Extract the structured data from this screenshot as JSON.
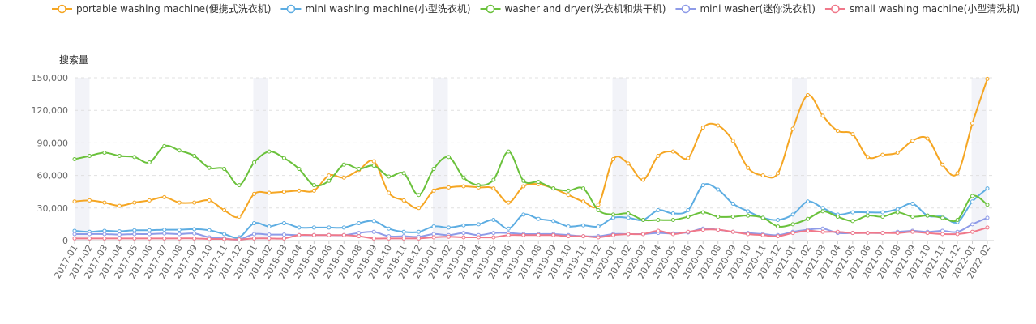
{
  "chart_data": {
    "type": "line",
    "title": "",
    "ylabel": "搜索量",
    "xlabel": "",
    "ylim": [
      0,
      150000
    ],
    "yticks": [
      0,
      30000,
      60000,
      90000,
      120000,
      150000
    ],
    "ytick_labels": [
      "0",
      "30,000",
      "60,000",
      "90,000",
      "120,000",
      "150,000"
    ],
    "grid": "horizontal-dashed",
    "legend_position": "top",
    "highlight_months": [
      "2017-01",
      "2018-01",
      "2019-01",
      "2020-01",
      "2021-01",
      "2022-01"
    ],
    "categories": [
      "2017-01",
      "2017-02",
      "2017-03",
      "2017-04",
      "2017-05",
      "2017-06",
      "2017-07",
      "2017-08",
      "2017-09",
      "2017-10",
      "2017-11",
      "2017-12",
      "2018-01",
      "2018-02",
      "2018-03",
      "2018-04",
      "2018-05",
      "2018-06",
      "2018-07",
      "2018-08",
      "2018-09",
      "2018-10",
      "2018-11",
      "2018-12",
      "2019-01",
      "2019-02",
      "2019-03",
      "2019-04",
      "2019-05",
      "2019-06",
      "2019-07",
      "2019-08",
      "2019-09",
      "2019-10",
      "2019-11",
      "2019-12",
      "2020-01",
      "2020-02",
      "2020-03",
      "2020-04",
      "2020-05",
      "2020-06",
      "2020-07",
      "2020-08",
      "2020-09",
      "2020-10",
      "2020-11",
      "2020-12",
      "2021-01",
      "2021-02",
      "2021-03",
      "2021-04",
      "2021-05",
      "2021-06",
      "2021-07",
      "2021-08",
      "2021-09",
      "2021-10",
      "2021-11",
      "2021-12",
      "2022-01",
      "2022-02"
    ],
    "series": [
      {
        "name": "portable washing machine(便携式洗衣机)",
        "color": "#f5a623",
        "values": [
          36000,
          37000,
          35000,
          32000,
          35000,
          37000,
          40000,
          35000,
          35000,
          37000,
          28000,
          22000,
          43000,
          44000,
          45000,
          46000,
          46000,
          60000,
          58000,
          65000,
          73000,
          44000,
          37000,
          30000,
          46000,
          49000,
          50000,
          49000,
          48000,
          35000,
          50000,
          52000,
          48000,
          42000,
          36000,
          33000,
          75000,
          71000,
          56000,
          78000,
          82000,
          76000,
          104000,
          106000,
          92000,
          67000,
          60000,
          62000,
          103000,
          134000,
          115000,
          101000,
          98000,
          77000,
          79000,
          81000,
          92000,
          94000,
          70000,
          62000,
          108000,
          149000
        ]
      },
      {
        "name": "mini washing machine(小型洗衣机)",
        "color": "#5dade2",
        "values": [
          9000,
          8000,
          9000,
          8500,
          9500,
          9500,
          10000,
          10000,
          10500,
          9500,
          6000,
          3000,
          16000,
          13000,
          16000,
          12000,
          12000,
          12000,
          12000,
          16000,
          18000,
          11000,
          8000,
          8000,
          13000,
          12000,
          14000,
          15000,
          19000,
          11000,
          24000,
          20000,
          18000,
          13000,
          14000,
          13000,
          21000,
          21000,
          19000,
          28000,
          25000,
          28000,
          51000,
          47000,
          34000,
          27000,
          21000,
          19000,
          24000,
          36000,
          30000,
          24000,
          26000,
          26000,
          26000,
          29000,
          34000,
          23000,
          22000,
          17000,
          36000,
          48000
        ]
      },
      {
        "name": "washer and dryer(洗衣机和烘干机)",
        "color": "#6ac13b",
        "values": [
          75000,
          78000,
          81000,
          78000,
          77000,
          72000,
          87000,
          83000,
          78000,
          67000,
          66000,
          51000,
          72000,
          82000,
          76000,
          66000,
          51000,
          55000,
          70000,
          66000,
          69000,
          59000,
          62000,
          42000,
          66000,
          77000,
          58000,
          51000,
          56000,
          82000,
          55000,
          54000,
          48000,
          46000,
          48000,
          28000,
          24000,
          25000,
          19000,
          19000,
          19000,
          22000,
          26000,
          22000,
          22000,
          23000,
          21000,
          13000,
          15000,
          20000,
          27000,
          22000,
          18000,
          23000,
          22000,
          26000,
          22000,
          23000,
          21000,
          19000,
          41000,
          33000
        ]
      },
      {
        "name": "mini washer(迷你洗衣机)",
        "color": "#8e9be8",
        "values": [
          6000,
          6000,
          6000,
          5500,
          6000,
          6000,
          6500,
          6000,
          6500,
          3000,
          2000,
          1000,
          6000,
          5500,
          5500,
          5000,
          5000,
          5000,
          5000,
          7000,
          8000,
          4000,
          4000,
          3500,
          6000,
          5000,
          7000,
          5000,
          7000,
          7000,
          6000,
          6000,
          6000,
          5000,
          4000,
          4000,
          6000,
          6000,
          6000,
          7000,
          6500,
          7500,
          11000,
          10000,
          8000,
          7000,
          6000,
          5000,
          8000,
          10000,
          11000,
          7000,
          7000,
          7000,
          7000,
          8000,
          9000,
          8000,
          9000,
          8000,
          15000,
          21000
        ]
      },
      {
        "name": "small washing machine(小型清洗机)",
        "color": "#f0788a",
        "values": [
          2000,
          2000,
          2000,
          2000,
          2000,
          2000,
          2000,
          2000,
          2000,
          1500,
          1500,
          1000,
          2000,
          2000,
          2000,
          5000,
          5000,
          5000,
          5000,
          4000,
          2000,
          2000,
          2000,
          2000,
          3000,
          3500,
          3000,
          3000,
          3000,
          5000,
          5000,
          5000,
          5000,
          4000,
          4000,
          3000,
          5000,
          6000,
          6000,
          9000,
          6000,
          8000,
          10000,
          10000,
          8000,
          6000,
          5000,
          4000,
          7000,
          9000,
          8000,
          8000,
          7000,
          7000,
          7000,
          7000,
          8000,
          7000,
          6000,
          6000,
          8000,
          12000
        ]
      }
    ]
  }
}
